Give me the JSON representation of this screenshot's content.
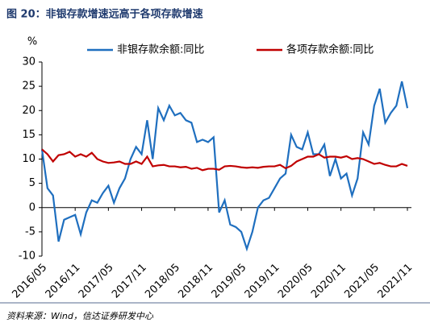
{
  "chart_data": {
    "type": "line",
    "title": "图 20：非银存款增速远高于各项存款增速",
    "y_label": "%",
    "source": "资料来源：Wind，信达证券研发中心",
    "categories": [
      "2016/05",
      null,
      null,
      null,
      null,
      null,
      "2016/11",
      null,
      null,
      null,
      null,
      null,
      "2017/05",
      null,
      null,
      null,
      null,
      null,
      "2017/11",
      null,
      null,
      null,
      null,
      null,
      "2018/05",
      null,
      null,
      null,
      null,
      null,
      "2018/11",
      null,
      null,
      null,
      null,
      null,
      "2019/05",
      null,
      null,
      null,
      null,
      null,
      "2019/11",
      null,
      null,
      null,
      null,
      null,
      "2020/05",
      null,
      null,
      null,
      null,
      null,
      "2020/11",
      null,
      null,
      null,
      null,
      null,
      "2021/05",
      null,
      null,
      null,
      null,
      null,
      "2021/11"
    ],
    "series": [
      {
        "name": "非银存款余额:同比",
        "color": "#1f6fbf",
        "values": [
          12,
          4,
          2.5,
          -7,
          -2.5,
          -2,
          -1.5,
          -5.5,
          -1,
          1.5,
          1,
          3,
          4.5,
          1,
          4,
          6,
          10,
          12.5,
          11,
          18,
          10,
          20.5,
          18,
          21,
          19,
          19.5,
          18,
          17.5,
          13.5,
          14,
          13.5,
          14.5,
          -1,
          1.5,
          -3.5,
          -4,
          -5,
          -8.5,
          -5,
          0,
          1.5,
          2,
          4,
          6,
          7,
          15,
          12.5,
          12,
          15.5,
          11,
          11,
          13,
          6.5,
          10,
          6,
          7,
          2.5,
          6,
          15.5,
          13,
          21,
          24.5,
          17.5,
          19.5,
          21,
          26,
          20.5
        ]
      },
      {
        "name": "各项存款余额:同比",
        "color": "#c00000",
        "values": [
          12,
          11,
          9.5,
          10.8,
          11,
          11.5,
          10.5,
          11,
          10.5,
          11.3,
          10,
          9.5,
          9.2,
          9.3,
          9.5,
          9,
          9,
          9.5,
          9,
          10.5,
          8.5,
          8.7,
          8.8,
          8.5,
          8.5,
          8.3,
          8.4,
          8,
          8.2,
          7.7,
          8,
          8,
          7.8,
          8.5,
          8.6,
          8.5,
          8.3,
          8.2,
          8.3,
          8.2,
          8.4,
          8.5,
          8.5,
          8.8,
          8.1,
          8.6,
          9.5,
          10,
          10.5,
          10.5,
          11,
          10.3,
          10.5,
          10.5,
          10.3,
          10.6,
          10,
          10.2,
          10,
          9.5,
          9,
          9.2,
          8.8,
          8.5,
          8.5,
          9,
          8.6
        ]
      }
    ],
    "ylim": [
      -10,
      30
    ],
    "yticks": [
      -10,
      -5,
      0,
      5,
      10,
      15,
      20,
      25,
      30
    ],
    "grid": false
  }
}
